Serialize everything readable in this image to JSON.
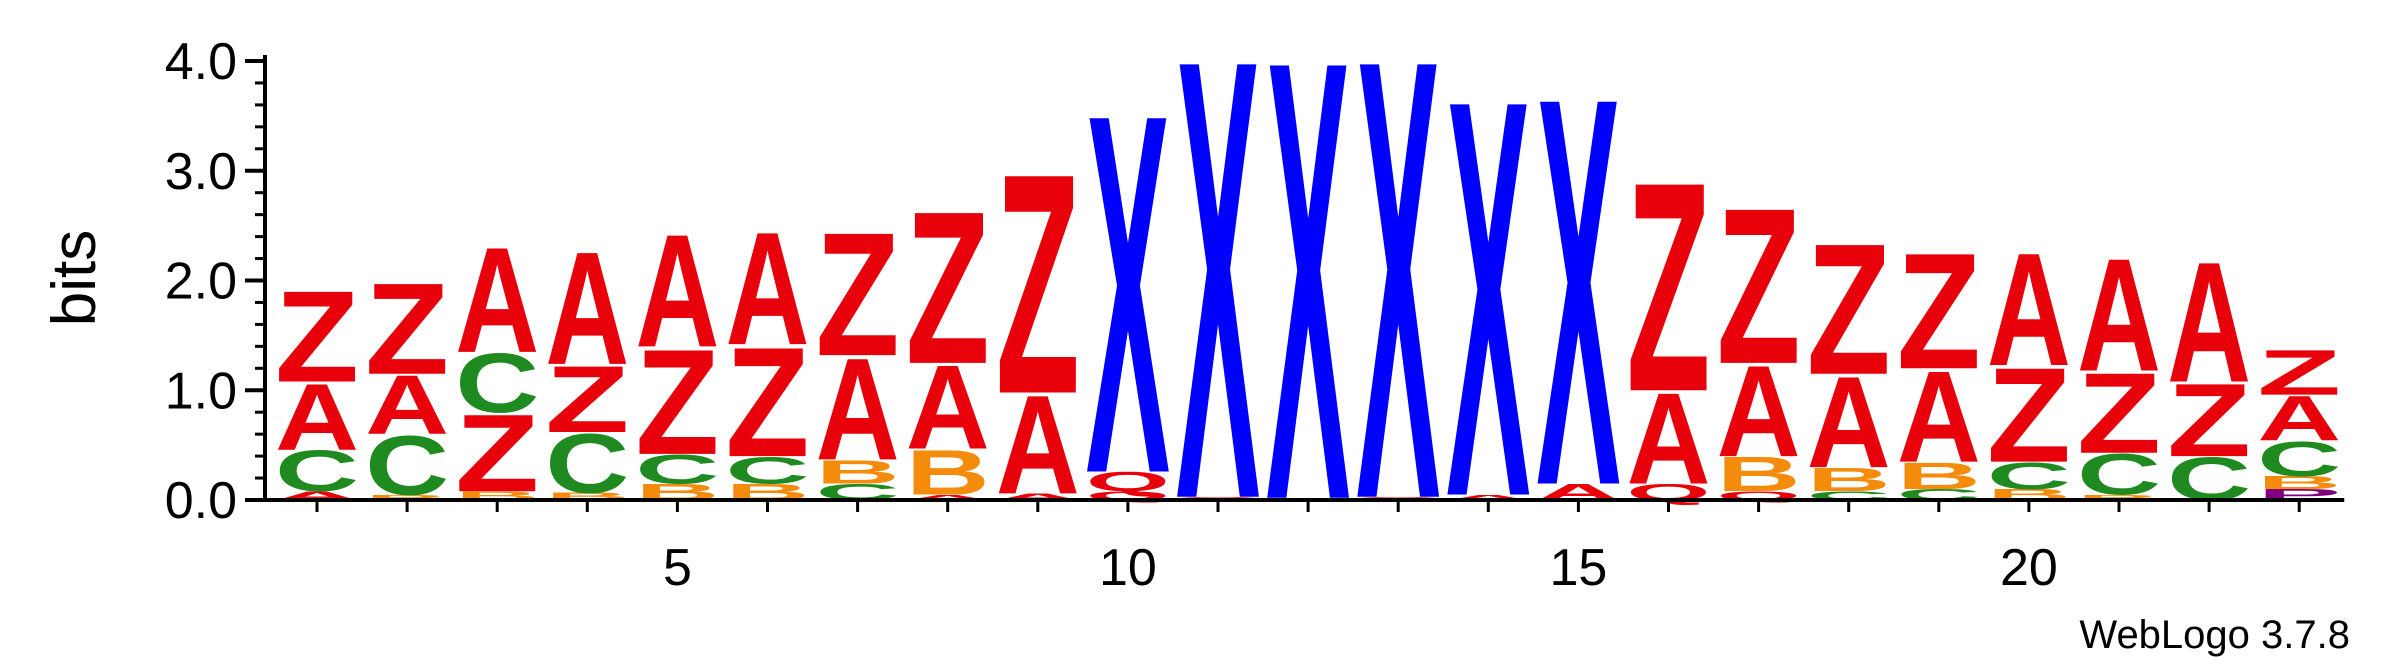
{
  "chart_data": {
    "type": "sequence-logo",
    "ylabel": "bits",
    "ylim": [
      0,
      4.0
    ],
    "y_ticks": [
      {
        "value": 0.0,
        "label": "0.0"
      },
      {
        "value": 1.0,
        "label": "1.0"
      },
      {
        "value": 2.0,
        "label": "2.0"
      },
      {
        "value": 3.0,
        "label": "3.0"
      },
      {
        "value": 4.0,
        "label": "4.0"
      }
    ],
    "x_range": [
      1,
      23
    ],
    "x_ticks": [
      {
        "value": 5,
        "label": "5"
      },
      {
        "value": 10,
        "label": "10"
      },
      {
        "value": 15,
        "label": "15"
      },
      {
        "value": 20,
        "label": "20"
      }
    ],
    "letter_colors": {
      "A": "#e8000b",
      "Z": "#e8000b",
      "C": "#1f8a1f",
      "B": "#f58b0b",
      "X": "#0000ff",
      "Q": "#e8000b",
      "P": "#800080"
    },
    "positions": [
      {
        "x": 1,
        "stack": [
          {
            "l": "A",
            "h": 0.08
          },
          {
            "l": "C",
            "h": 0.38
          },
          {
            "l": "A",
            "h": 0.62
          },
          {
            "l": "Z",
            "h": 0.85
          }
        ]
      },
      {
        "x": 2,
        "stack": [
          {
            "l": "B",
            "h": 0.05
          },
          {
            "l": "C",
            "h": 0.55
          },
          {
            "l": "A",
            "h": 0.55
          },
          {
            "l": "Z",
            "h": 0.85
          }
        ]
      },
      {
        "x": 3,
        "stack": [
          {
            "l": "B",
            "h": 0.08
          },
          {
            "l": "Z",
            "h": 0.72
          },
          {
            "l": "C",
            "h": 0.55
          },
          {
            "l": "A",
            "h": 0.98
          }
        ]
      },
      {
        "x": 4,
        "stack": [
          {
            "l": "B",
            "h": 0.07
          },
          {
            "l": "C",
            "h": 0.55
          },
          {
            "l": "Z",
            "h": 0.62
          },
          {
            "l": "A",
            "h": 1.05
          }
        ]
      },
      {
        "x": 5,
        "stack": [
          {
            "l": "B",
            "h": 0.15
          },
          {
            "l": "C",
            "h": 0.27
          },
          {
            "l": "Z",
            "h": 0.98
          },
          {
            "l": "A",
            "h": 1.05
          }
        ]
      },
      {
        "x": 6,
        "stack": [
          {
            "l": "B",
            "h": 0.15
          },
          {
            "l": "C",
            "h": 0.25
          },
          {
            "l": "Z",
            "h": 1.02
          },
          {
            "l": "A",
            "h": 1.05
          }
        ]
      },
      {
        "x": 7,
        "stack": [
          {
            "l": "C",
            "h": 0.15
          },
          {
            "l": "B",
            "h": 0.22
          },
          {
            "l": "A",
            "h": 0.95
          },
          {
            "l": "Z",
            "h": 1.15
          }
        ]
      },
      {
        "x": 8,
        "stack": [
          {
            "l": "A",
            "h": 0.05
          },
          {
            "l": "B",
            "h": 0.42
          },
          {
            "l": "A",
            "h": 0.78
          },
          {
            "l": "Z",
            "h": 1.42
          }
        ]
      },
      {
        "x": 9,
        "stack": [
          {
            "l": "A",
            "h": 0.06
          },
          {
            "l": "A",
            "h": 0.92
          },
          {
            "l": "Z",
            "h": 2.05
          }
        ]
      },
      {
        "x": 10,
        "stack": [
          {
            "l": "Q",
            "h": 0.08
          },
          {
            "l": "Q",
            "h": 0.18
          },
          {
            "l": "X",
            "h": 3.35
          }
        ]
      },
      {
        "x": 11,
        "stack": [
          {
            "l": "Q",
            "h": 0.03
          },
          {
            "l": "X",
            "h": 4.1
          }
        ]
      },
      {
        "x": 12,
        "stack": [
          {
            "l": "Q",
            "h": 0.02
          },
          {
            "l": "X",
            "h": 4.1
          }
        ]
      },
      {
        "x": 13,
        "stack": [
          {
            "l": "Q",
            "h": 0.03
          },
          {
            "l": "X",
            "h": 4.1
          }
        ]
      },
      {
        "x": 14,
        "stack": [
          {
            "l": "A",
            "h": 0.05
          },
          {
            "l": "X",
            "h": 3.7
          }
        ]
      },
      {
        "x": 15,
        "stack": [
          {
            "l": "A",
            "h": 0.15
          },
          {
            "l": "X",
            "h": 3.62
          }
        ]
      },
      {
        "x": 16,
        "stack": [
          {
            "l": "Q",
            "h": 0.15
          },
          {
            "l": "A",
            "h": 0.85
          },
          {
            "l": "Z",
            "h": 1.95
          }
        ]
      },
      {
        "x": 17,
        "stack": [
          {
            "l": "Q",
            "h": 0.08
          },
          {
            "l": "B",
            "h": 0.32
          },
          {
            "l": "A",
            "h": 0.85
          },
          {
            "l": "Z",
            "h": 1.45
          }
        ]
      },
      {
        "x": 18,
        "stack": [
          {
            "l": "C",
            "h": 0.08
          },
          {
            "l": "B",
            "h": 0.22
          },
          {
            "l": "A",
            "h": 0.85
          },
          {
            "l": "Z",
            "h": 1.22
          }
        ]
      },
      {
        "x": 19,
        "stack": [
          {
            "l": "C",
            "h": 0.1
          },
          {
            "l": "B",
            "h": 0.25
          },
          {
            "l": "A",
            "h": 0.85
          },
          {
            "l": "Z",
            "h": 1.08
          }
        ]
      },
      {
        "x": 20,
        "stack": [
          {
            "l": "B",
            "h": 0.1
          },
          {
            "l": "C",
            "h": 0.25
          },
          {
            "l": "Z",
            "h": 0.88
          },
          {
            "l": "A",
            "h": 1.05
          }
        ]
      },
      {
        "x": 21,
        "stack": [
          {
            "l": "B",
            "h": 0.05
          },
          {
            "l": "C",
            "h": 0.38
          },
          {
            "l": "Z",
            "h": 0.75
          },
          {
            "l": "A",
            "h": 1.05
          }
        ]
      },
      {
        "x": 22,
        "stack": [
          {
            "l": "C",
            "h": 0.4
          },
          {
            "l": "Z",
            "h": 0.68
          },
          {
            "l": "A",
            "h": 1.12
          }
        ]
      },
      {
        "x": 23,
        "stack": [
          {
            "l": "P",
            "h": 0.1
          },
          {
            "l": "B",
            "h": 0.12
          },
          {
            "l": "C",
            "h": 0.32
          },
          {
            "l": "A",
            "h": 0.42
          },
          {
            "l": "Z",
            "h": 0.42
          }
        ]
      }
    ]
  },
  "footer": {
    "text": "WebLogo 3.7.8"
  }
}
